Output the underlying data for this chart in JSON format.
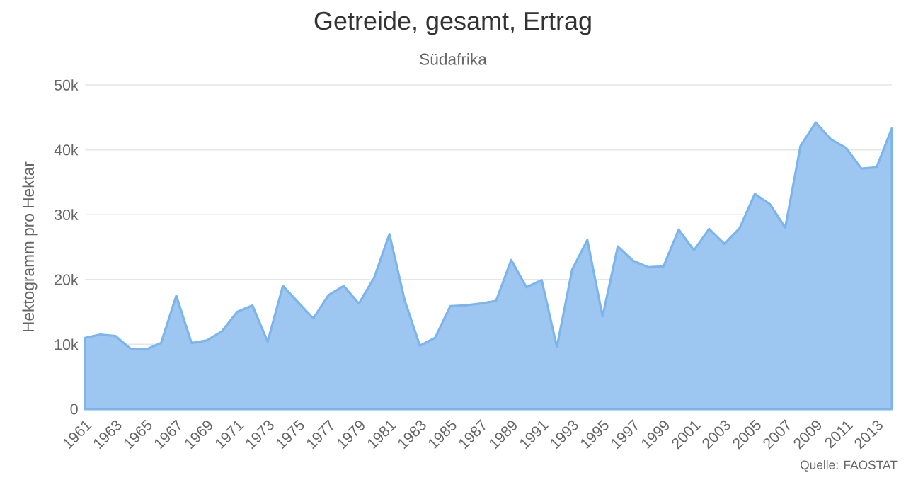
{
  "chart_data": {
    "type": "area",
    "title": "Getreide, gesamt, Ertrag",
    "subtitle": "Südafrika",
    "ylabel": "Hektogramm pro Hektar",
    "annotations": [
      "Quelle: FAOSTAT"
    ],
    "x": [
      1961,
      1962,
      1963,
      1964,
      1965,
      1966,
      1967,
      1968,
      1969,
      1970,
      1971,
      1972,
      1973,
      1974,
      1975,
      1976,
      1977,
      1978,
      1979,
      1980,
      1981,
      1982,
      1983,
      1984,
      1985,
      1986,
      1987,
      1988,
      1989,
      1990,
      1991,
      1992,
      1993,
      1994,
      1995,
      1996,
      1997,
      1998,
      1999,
      2000,
      2001,
      2002,
      2003,
      2004,
      2005,
      2006,
      2007,
      2008,
      2009,
      2010,
      2011,
      2012,
      2013,
      2014
    ],
    "series": [
      {
        "color": "#7cb5ec",
        "values": [
          11000,
          11500,
          11300,
          9300,
          9200,
          10200,
          17500,
          10200,
          10600,
          12000,
          15000,
          16000,
          10400,
          19000,
          16500,
          14000,
          17600,
          19000,
          16300,
          20300,
          27000,
          16800,
          9800,
          11000,
          15900,
          16000,
          16300,
          16700,
          23000,
          18800,
          19900,
          9600,
          21500,
          26100,
          14300,
          25100,
          22900,
          21900,
          22000,
          27700,
          24500,
          27800,
          25500,
          27900,
          33200,
          31600,
          28000,
          40600,
          44200,
          41600,
          40300,
          37100,
          37300,
          43300
        ]
      }
    ],
    "xlim": [
      1961,
      2014
    ],
    "xticks": [
      1961,
      1963,
      1965,
      1967,
      1969,
      1971,
      1973,
      1975,
      1977,
      1979,
      1981,
      1983,
      1985,
      1987,
      1989,
      1991,
      1993,
      1995,
      1997,
      1999,
      2001,
      2003,
      2005,
      2007,
      2009,
      2011,
      2013
    ],
    "ylim": [
      0,
      50000
    ],
    "yticks": [
      {
        "value": 0,
        "label": "0"
      },
      {
        "value": 10000,
        "label": "10k"
      },
      {
        "value": 20000,
        "label": "20k"
      },
      {
        "value": 30000,
        "label": "30k"
      },
      {
        "value": 40000,
        "label": "40k"
      },
      {
        "value": 50000,
        "label": "50k"
      }
    ],
    "grid": "y"
  }
}
